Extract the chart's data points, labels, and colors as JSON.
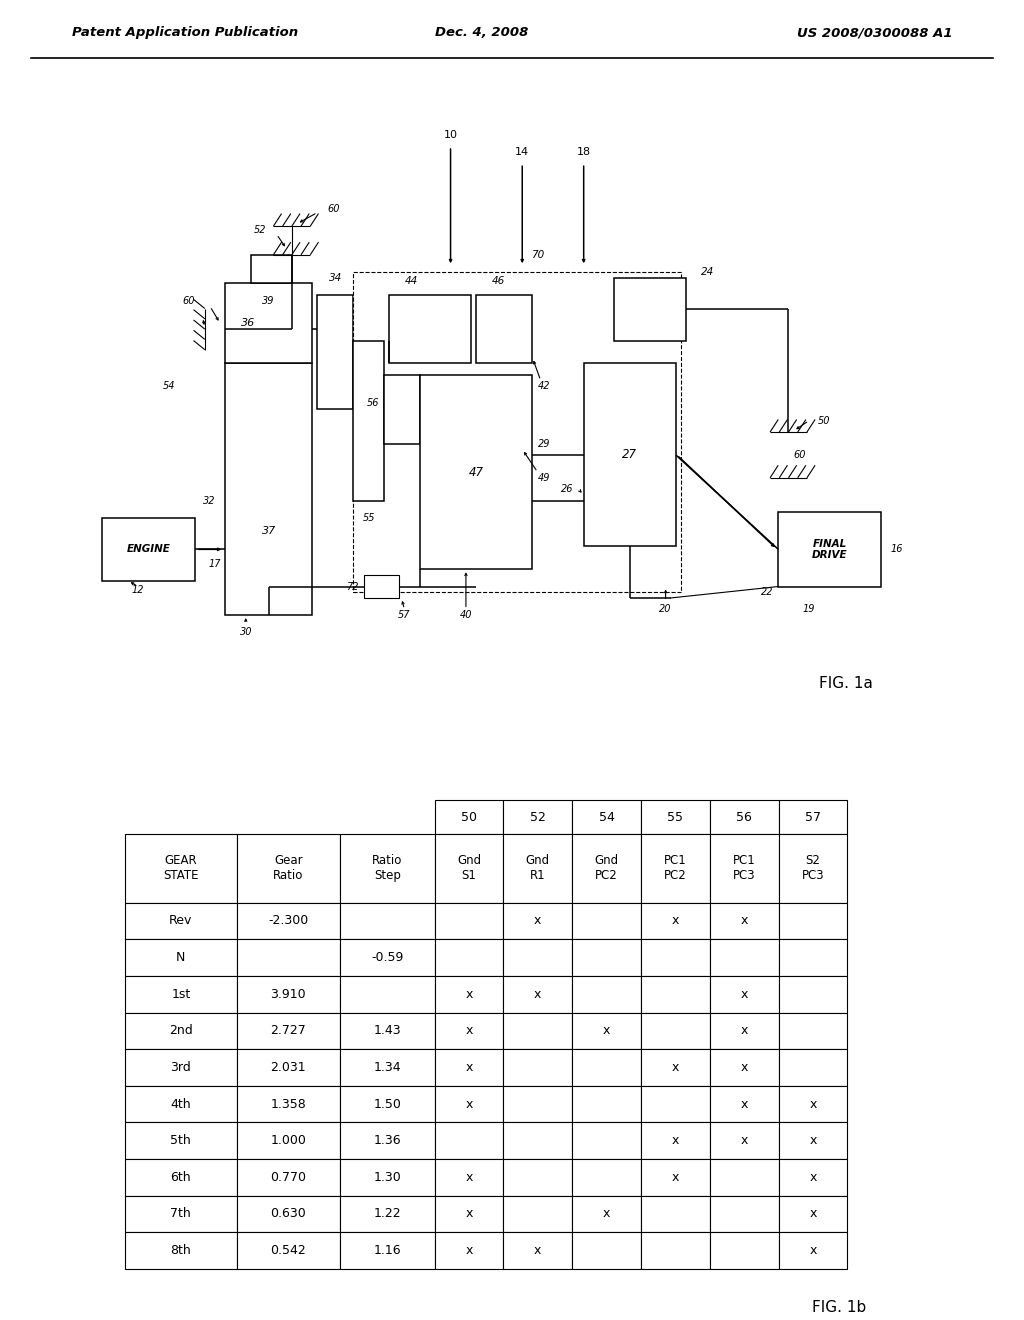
{
  "bg_color": "#ffffff",
  "header_left": "Patent Application Publication",
  "header_center": "Dec. 4, 2008",
  "header_right": "US 2008/0300088 A1",
  "fig1a_label": "FIG. 1a",
  "fig1b_label": "FIG. 1b",
  "table_col_numbers": [
    "50",
    "52",
    "54",
    "55",
    "56",
    "57"
  ],
  "table_rows": [
    [
      "Rev",
      "-2.300",
      "",
      "",
      "x",
      "",
      "x",
      "x",
      ""
    ],
    [
      "N",
      "",
      "-0.59",
      "",
      "",
      "",
      "",
      "",
      ""
    ],
    [
      "1st",
      "3.910",
      "",
      "x",
      "x",
      "",
      "",
      "x",
      ""
    ],
    [
      "2nd",
      "2.727",
      "1.43",
      "x",
      "",
      "x",
      "",
      "x",
      ""
    ],
    [
      "3rd",
      "2.031",
      "1.34",
      "x",
      "",
      "",
      "x",
      "x",
      ""
    ],
    [
      "4th",
      "1.358",
      "1.50",
      "x",
      "",
      "",
      "",
      "x",
      "x"
    ],
    [
      "5th",
      "1.000",
      "1.36",
      "",
      "",
      "",
      "x",
      "x",
      "x"
    ],
    [
      "6th",
      "0.770",
      "1.30",
      "x",
      "",
      "",
      "x",
      "",
      "x"
    ],
    [
      "7th",
      "0.630",
      "1.22",
      "x",
      "",
      "x",
      "",
      "",
      "x"
    ],
    [
      "8th",
      "0.542",
      "1.16",
      "x",
      "x",
      "",
      "",
      "",
      "x"
    ]
  ]
}
